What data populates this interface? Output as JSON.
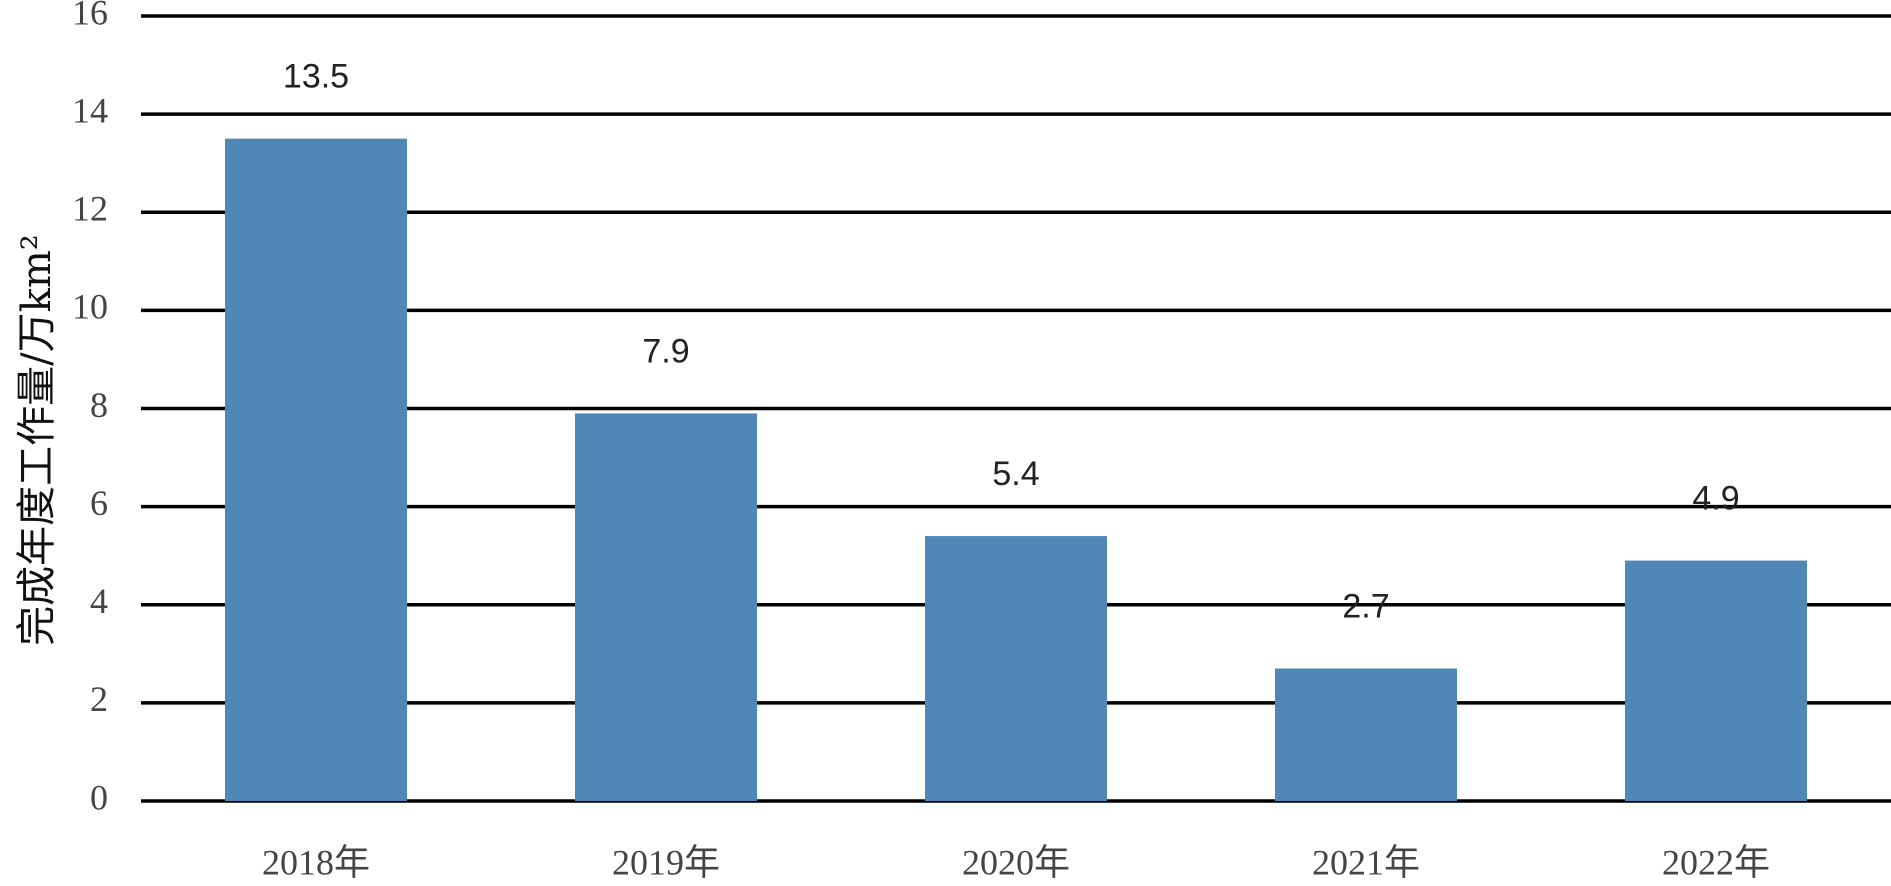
{
  "chart_data": {
    "type": "bar",
    "y_label": "完成年度工作量/万km²",
    "categories": [
      "2018年",
      "2019年",
      "2020年",
      "2021年",
      "2022年"
    ],
    "values": [
      13.5,
      7.9,
      5.4,
      2.7,
      4.9
    ],
    "color": "#4f87b6",
    "ylim": [
      0,
      16
    ],
    "yticks": [
      0,
      2,
      4,
      6,
      8,
      10,
      12,
      14,
      16
    ],
    "grid": true
  }
}
